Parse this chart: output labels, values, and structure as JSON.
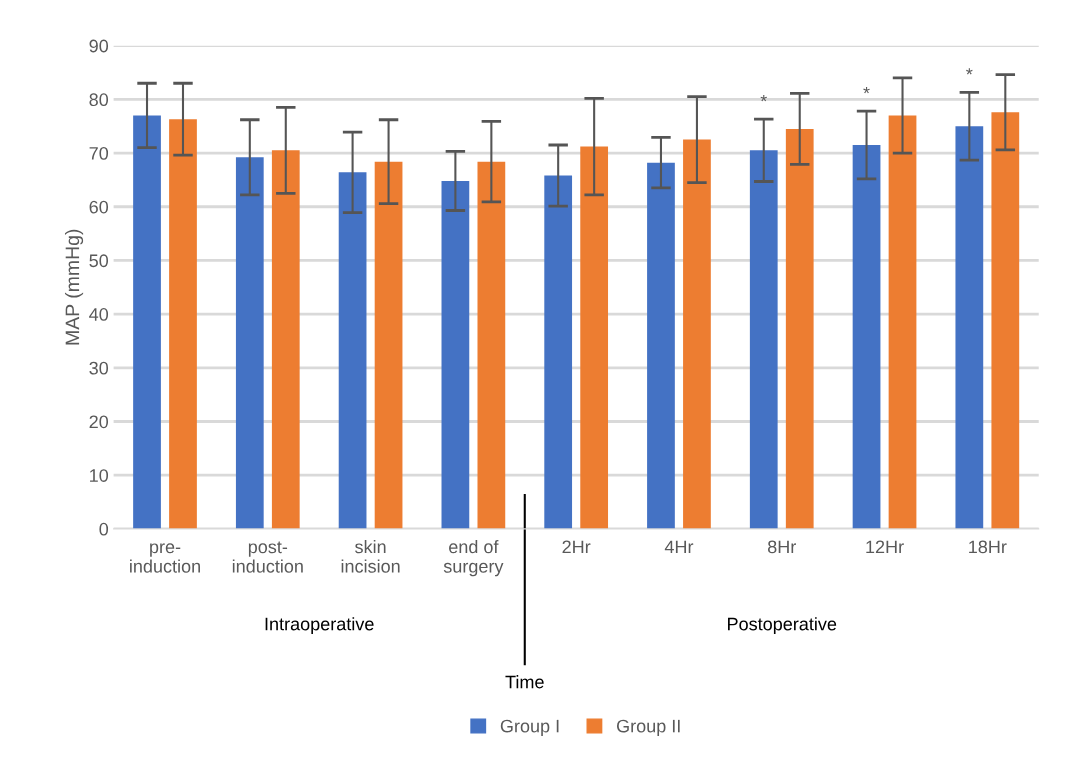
{
  "chart_data": {
    "type": "bar",
    "ylabel": "MAP (mmHg)",
    "categories": [
      "pre-\ninduction",
      "post-\ninduction",
      "skin\nincision",
      "end of\nsurgery",
      "2Hr",
      "4Hr",
      "8Hr",
      "12Hr",
      "18Hr"
    ],
    "series": [
      {
        "name": "Group I",
        "color": "#4472c4",
        "values": [
          77,
          69.2,
          66.4,
          64.8,
          65.8,
          68.2,
          70.5,
          71.5,
          75
        ],
        "errors": [
          6,
          7,
          7.5,
          5.5,
          5.7,
          4.7,
          5.8,
          6.3,
          6.3
        ]
      },
      {
        "name": "Group II",
        "color": "#ed7d31",
        "values": [
          76.3,
          70.5,
          68.4,
          68.4,
          71.2,
          72.5,
          74.5,
          77,
          77.6
        ],
        "errors": [
          6.7,
          8,
          7.8,
          7.5,
          9,
          8,
          6.6,
          7,
          7
        ]
      }
    ],
    "ylim": [
      0,
      90
    ],
    "yticks": [
      0,
      10,
      20,
      30,
      40,
      50,
      60,
      70,
      80,
      90
    ],
    "grid": "y",
    "legend": "bottom",
    "annotations": [
      "Intraoperative",
      "Postoperative",
      "Time",
      "*",
      "*",
      "*"
    ]
  }
}
